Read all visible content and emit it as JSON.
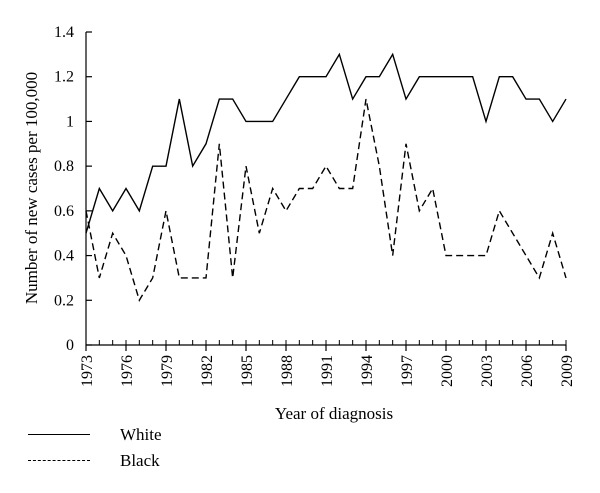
{
  "chart_data": {
    "type": "line",
    "xlabel": "Year of diagnosis",
    "ylabel": "Number of new cases per 100,000",
    "ylim": [
      0,
      1.4
    ],
    "xlim": [
      1973,
      2009
    ],
    "yticks": [
      0,
      0.2,
      0.4,
      0.6,
      0.8,
      1,
      1.2,
      1.4
    ],
    "ytick_labels": [
      "0",
      "0.2",
      "0.4",
      "0.6",
      "0.8",
      "1",
      "1.2",
      "1.4"
    ],
    "xticks": [
      1973,
      1976,
      1979,
      1982,
      1985,
      1988,
      1991,
      1994,
      1997,
      2000,
      2003,
      2006,
      2009
    ],
    "xtick_labels": [
      "1973",
      "1976",
      "1979",
      "1982",
      "1985",
      "1988",
      "1991",
      "1994",
      "1997",
      "2000",
      "2003",
      "2006",
      "2009"
    ],
    "x": [
      1973,
      1974,
      1975,
      1976,
      1977,
      1978,
      1979,
      1980,
      1981,
      1982,
      1983,
      1984,
      1985,
      1986,
      1987,
      1988,
      1989,
      1990,
      1991,
      1992,
      1993,
      1994,
      1995,
      1996,
      1997,
      1998,
      1999,
      2000,
      2001,
      2002,
      2003,
      2004,
      2005,
      2006,
      2007,
      2008,
      2009
    ],
    "series": [
      {
        "name": "White",
        "style": "solid",
        "values": [
          0.5,
          0.7,
          0.6,
          0.7,
          0.6,
          0.8,
          0.8,
          1.1,
          0.8,
          0.9,
          1.1,
          1.1,
          1.0,
          1.0,
          1.0,
          1.1,
          1.2,
          1.2,
          1.2,
          1.3,
          1.1,
          1.2,
          1.2,
          1.3,
          1.1,
          1.2,
          1.2,
          1.2,
          1.2,
          1.2,
          1.0,
          1.2,
          1.2,
          1.1,
          1.1,
          1.0,
          1.1
        ]
      },
      {
        "name": "Black",
        "style": "dashed",
        "values": [
          0.6,
          0.3,
          0.5,
          0.4,
          0.2,
          0.3,
          0.6,
          0.3,
          0.3,
          0.3,
          0.9,
          0.3,
          0.8,
          0.5,
          0.7,
          0.6,
          0.7,
          0.7,
          0.8,
          0.7,
          0.7,
          1.1,
          0.8,
          0.4,
          0.9,
          0.6,
          0.7,
          0.4,
          0.4,
          0.4,
          0.4,
          0.6,
          0.5,
          0.4,
          0.3,
          0.5,
          0.3
        ]
      }
    ],
    "grid": false,
    "legend_position": "bottom-left"
  }
}
